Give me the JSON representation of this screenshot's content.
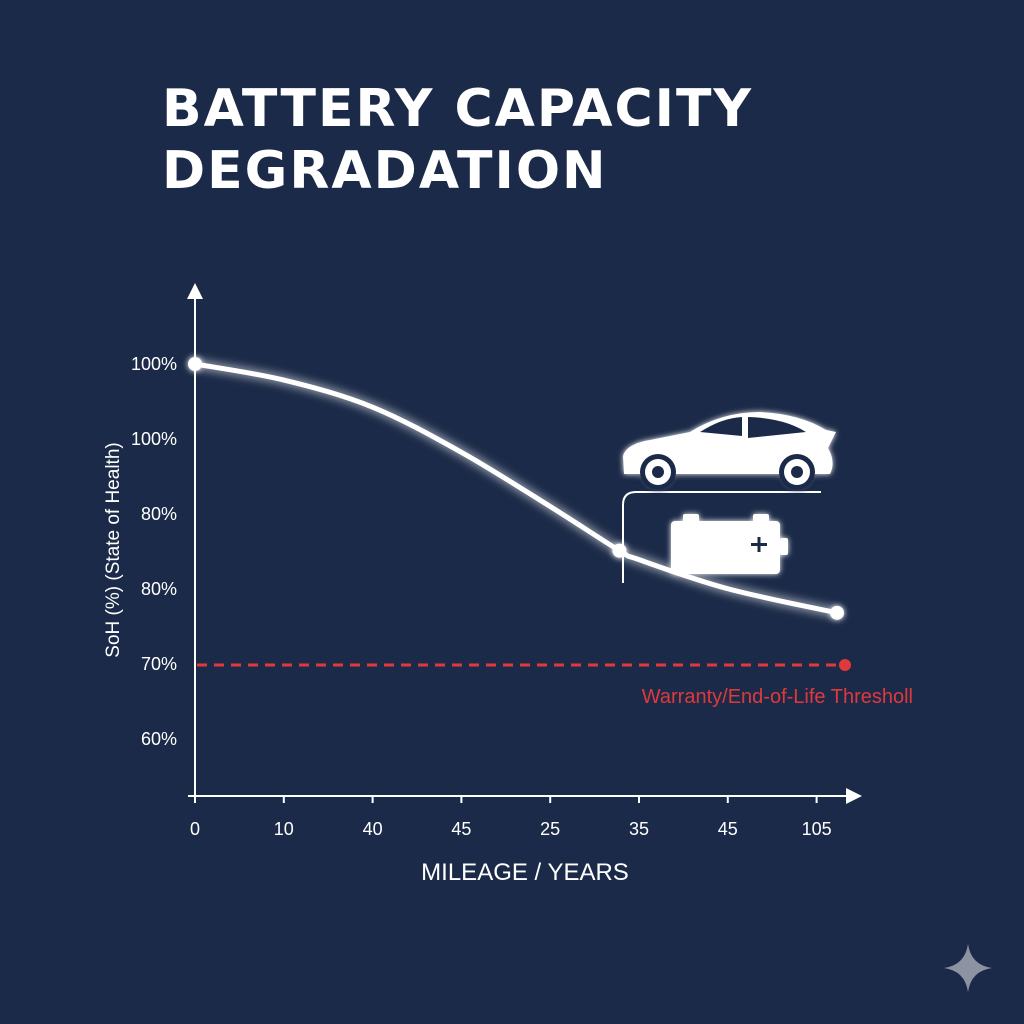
{
  "title_lines": [
    "BATTERY CAPACITY",
    "DEGRADATION"
  ],
  "colors": {
    "background": "#1b2a48",
    "curve": "#ffffff",
    "threshold": "#e0393b",
    "sparkle": "#8d93a3"
  },
  "icons": [
    "car-icon",
    "battery-icon",
    "sparkle-icon"
  ],
  "chart_data": {
    "type": "line",
    "title": "BATTERY CAPACITY DEGRADATION",
    "xlabel": "MILEAGE / YEARS",
    "ylabel": "SoH (%) (State of Health)",
    "x_tick_labels": [
      "0",
      "10",
      "40",
      "45",
      "25",
      "35",
      "45",
      "105"
    ],
    "y_tick_labels": [
      "100%",
      "100%",
      "80%",
      "80%",
      "70%",
      "60%"
    ],
    "series": [
      {
        "values": [
          {
            "x_index": 0,
            "y": 100,
            "marker": true
          },
          {
            "x_index": 1,
            "y": 98.4
          },
          {
            "x_index": 2,
            "y": 95.7
          },
          {
            "x_index": 3,
            "y": 91.2
          },
          {
            "x_index": 4,
            "y": 85.8
          },
          {
            "x_index": 4.78,
            "y": 81.4,
            "marker": true
          },
          {
            "x_index": 5,
            "y": 80.5
          },
          {
            "x_index": 6,
            "y": 77.6
          },
          {
            "x_index": 7.23,
            "y": 75.2,
            "marker": true
          }
        ]
      }
    ],
    "threshold": {
      "y": 70,
      "label": "Warranty/End-of-Life Thresholl"
    },
    "grid": false,
    "legend": "none"
  }
}
